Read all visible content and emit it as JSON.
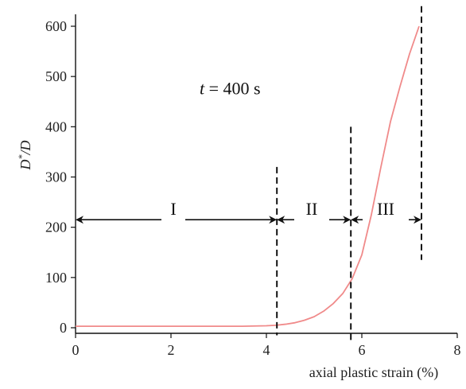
{
  "chart_data": {
    "type": "line",
    "title": "",
    "xlabel": "axial plastic strain (%)",
    "ylabel": "D*/D",
    "ylabel_parts": {
      "main": "D",
      "sup": "*",
      "rest": "/D"
    },
    "xlim": [
      0,
      8
    ],
    "ylim": [
      0,
      600
    ],
    "x_ticks": [
      0,
      2,
      4,
      6,
      8
    ],
    "y_ticks": [
      0,
      100,
      200,
      300,
      400,
      500,
      600
    ],
    "grid": false,
    "series": [
      {
        "color": "#f08a8a",
        "x": [
          0,
          0.5,
          1,
          1.5,
          2,
          2.5,
          3,
          3.5,
          4,
          4.2,
          4.4,
          4.6,
          4.8,
          5.0,
          5.2,
          5.4,
          5.6,
          5.8,
          6.0,
          6.2,
          6.4,
          6.6,
          6.8,
          7.0,
          7.2
        ],
        "y": [
          3,
          3,
          3,
          3,
          3,
          3,
          3,
          3,
          4,
          5,
          7,
          10,
          15,
          22,
          33,
          48,
          68,
          98,
          145,
          225,
          320,
          410,
          480,
          545,
          600
        ]
      }
    ],
    "boundaries": [
      {
        "x": 4.22,
        "y_top": 320,
        "y_bottom": -15
      },
      {
        "x": 5.77,
        "y_top": 400,
        "y_bottom": -25
      },
      {
        "x": 7.25,
        "y_top": 640,
        "y_bottom": 135
      }
    ],
    "annotations": {
      "time": {
        "var": "t",
        "eq": " = 400 s",
        "x": 2.6,
        "y": 465
      },
      "regions": [
        {
          "label": "I",
          "x_start": 0,
          "x_end": 4.22,
          "y": 215,
          "label_x": 2.05
        },
        {
          "label": "II",
          "x_start": 4.22,
          "x_end": 5.77,
          "y": 215,
          "label_x": 4.95
        },
        {
          "label": "III",
          "x_start": 5.77,
          "x_end": 7.25,
          "y": 215,
          "label_x": 6.5
        }
      ]
    }
  }
}
